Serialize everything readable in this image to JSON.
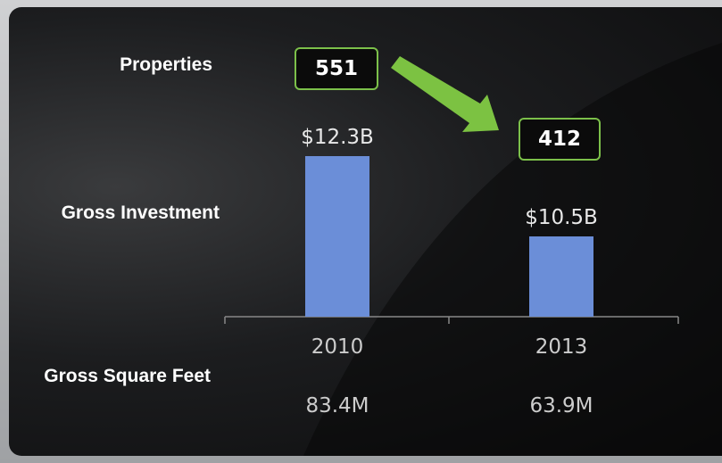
{
  "chart_data": {
    "type": "bar",
    "categories": [
      "2010",
      "2013"
    ],
    "values": [
      12.3,
      10.5
    ],
    "value_labels": [
      "$12.3B",
      "$10.5B"
    ],
    "value_axis_label": "Gross Investment",
    "color": "#6b8ed8",
    "ylim": [
      8.7,
      13.5
    ],
    "properties": {
      "label": "Properties",
      "values": [
        551,
        412
      ]
    },
    "square_feet": {
      "label": "Gross Square Feet",
      "values": [
        83.4,
        63.9
      ],
      "value_labels": [
        "83.4M",
        "63.9M"
      ]
    }
  }
}
